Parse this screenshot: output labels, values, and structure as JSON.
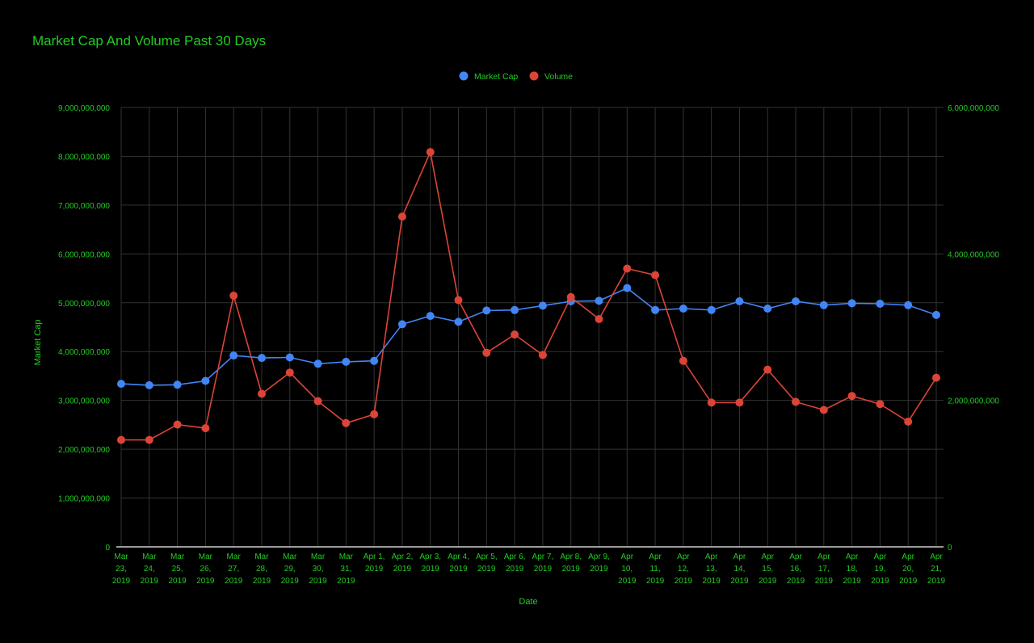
{
  "chart_data": {
    "type": "line",
    "title": "Market Cap And Volume Past 30 Days",
    "xlabel": "Date",
    "ylabel": "Market Cap",
    "y2label": "",
    "legend_position": "top",
    "grid": true,
    "ylim": [
      0,
      9000000000
    ],
    "y2lim": [
      0,
      6000000000
    ],
    "y_ticks": [
      "0",
      "1,000,000,000",
      "2,000,000,000",
      "3,000,000,000",
      "4,000,000,000",
      "5,000,000,000",
      "6,000,000,000",
      "7,000,000,000",
      "8,000,000,000",
      "9,000,000,000"
    ],
    "y2_ticks": [
      "0",
      "2,000,000,000",
      "4,000,000,000",
      "6,000,000,000"
    ],
    "categories": [
      [
        "Mar",
        "23,",
        "2019"
      ],
      [
        "Mar",
        "24,",
        "2019"
      ],
      [
        "Mar",
        "25,",
        "2019"
      ],
      [
        "Mar",
        "26,",
        "2019"
      ],
      [
        "Mar",
        "27,",
        "2019"
      ],
      [
        "Mar",
        "28,",
        "2019"
      ],
      [
        "Mar",
        "29,",
        "2019"
      ],
      [
        "Mar",
        "30,",
        "2019"
      ],
      [
        "Mar",
        "31,",
        "2019"
      ],
      [
        "Apr 1,",
        "2019"
      ],
      [
        "Apr 2,",
        "2019"
      ],
      [
        "Apr 3,",
        "2019"
      ],
      [
        "Apr 4,",
        "2019"
      ],
      [
        "Apr 5,",
        "2019"
      ],
      [
        "Apr 6,",
        "2019"
      ],
      [
        "Apr 7,",
        "2019"
      ],
      [
        "Apr 8,",
        "2019"
      ],
      [
        "Apr 9,",
        "2019"
      ],
      [
        "Apr",
        "10,",
        "2019"
      ],
      [
        "Apr",
        "11,",
        "2019"
      ],
      [
        "Apr",
        "12,",
        "2019"
      ],
      [
        "Apr",
        "13,",
        "2019"
      ],
      [
        "Apr",
        "14,",
        "2019"
      ],
      [
        "Apr",
        "15,",
        "2019"
      ],
      [
        "Apr",
        "16,",
        "2019"
      ],
      [
        "Apr",
        "17,",
        "2019"
      ],
      [
        "Apr",
        "18,",
        "2019"
      ],
      [
        "Apr",
        "19,",
        "2019"
      ],
      [
        "Apr",
        "20,",
        "2019"
      ],
      [
        "Apr",
        "21,",
        "2019"
      ]
    ],
    "series": [
      {
        "name": "Market Cap",
        "axis": "left",
        "color": "#4285f4",
        "values": [
          3340000000,
          3310000000,
          3320000000,
          3400000000,
          3920000000,
          3870000000,
          3880000000,
          3750000000,
          3790000000,
          3810000000,
          4560000000,
          4730000000,
          4610000000,
          4840000000,
          4850000000,
          4940000000,
          5030000000,
          5040000000,
          5300000000,
          4850000000,
          4880000000,
          4850000000,
          5030000000,
          4880000000,
          5030000000,
          4950000000,
          4990000000,
          4980000000,
          4950000000,
          4750000000
        ]
      },
      {
        "name": "Volume",
        "axis": "right",
        "color": "#db4437",
        "values": [
          1460000000,
          1460000000,
          1670000000,
          1620000000,
          3430000000,
          2090000000,
          2380000000,
          1990000000,
          1690000000,
          1810000000,
          4510000000,
          5390000000,
          3370000000,
          2650000000,
          2900000000,
          2620000000,
          3410000000,
          3110000000,
          3800000000,
          3710000000,
          2540000000,
          1970000000,
          1970000000,
          2420000000,
          1980000000,
          1870000000,
          2060000000,
          1950000000,
          1710000000,
          2310000000
        ]
      }
    ]
  },
  "colors": {
    "background": "#000000",
    "text": "#22cc22",
    "grid": "#333333",
    "baseline": "#cccccc"
  }
}
